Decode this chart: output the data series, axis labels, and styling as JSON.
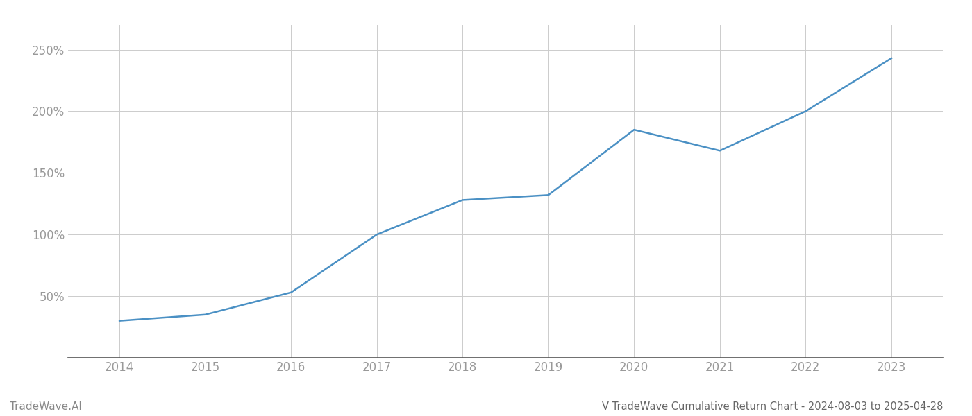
{
  "title": "V TradeWave Cumulative Return Chart - 2024-08-03 to 2025-04-28",
  "watermark": "TradeWave.AI",
  "line_color": "#4a90c4",
  "background_color": "#ffffff",
  "grid_color": "#cccccc",
  "years": [
    2014,
    2015,
    2016,
    2017,
    2018,
    2019,
    2020,
    2021,
    2022,
    2023
  ],
  "x_values": [
    2014,
    2015,
    2016,
    2017,
    2018,
    2019,
    2020,
    2021,
    2022,
    2023
  ],
  "y_values": [
    30,
    35,
    53,
    100,
    128,
    132,
    185,
    168,
    200,
    243
  ],
  "yticks": [
    50,
    100,
    150,
    200,
    250
  ],
  "ytick_labels": [
    "50%",
    "100%",
    "150%",
    "200%",
    "250%"
  ],
  "ylim": [
    0,
    270
  ],
  "xlim": [
    2013.4,
    2023.6
  ],
  "label_color": "#999999",
  "title_color": "#666666",
  "watermark_color": "#888888",
  "axis_color": "#555555",
  "line_width": 1.8,
  "title_fontsize": 10.5,
  "tick_fontsize": 12,
  "watermark_fontsize": 11
}
